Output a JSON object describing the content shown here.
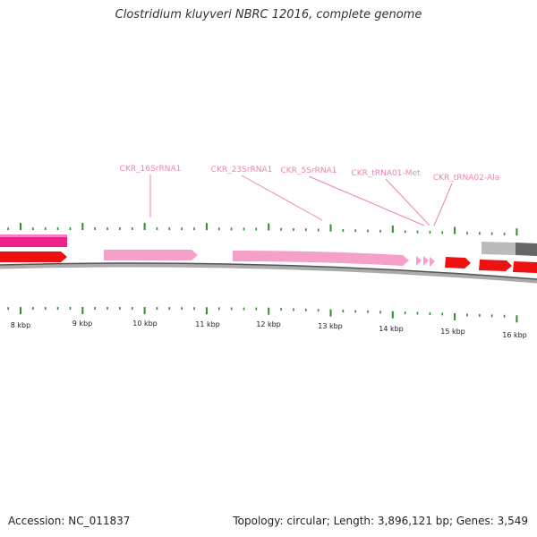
{
  "title": "Clostridium kluyveri NBRC 12016, complete genome",
  "footer": {
    "accession": "Accession: NC_011837",
    "summary": "Topology: circular; Length: 3,896,121 bp; Genes: 3,549"
  },
  "colors": {
    "rrna": "#f4a0c8",
    "cds": "#ee1111",
    "magenta": "#f0208a",
    "label": "#ee82b4",
    "tick": "#2e8b2e",
    "backbone": "#888888",
    "gray_light": "#bbbbbb",
    "gray_dark": "#666666"
  },
  "kbp_labels": [
    "8 kbp",
    "9 kbp",
    "10 kbp",
    "11 kbp",
    "12 kbp",
    "13 kbp",
    "14 kbp",
    "15 kbp",
    "16 kbp"
  ],
  "features": [
    {
      "name": "CKR_16SrRNA1"
    },
    {
      "name": "CKR_23SrRNA1"
    },
    {
      "name": "CKR_5SrRNA1"
    },
    {
      "name": "CKR_tRNA01-Met"
    },
    {
      "name": "CKR_tRNA02-Ala"
    }
  ]
}
